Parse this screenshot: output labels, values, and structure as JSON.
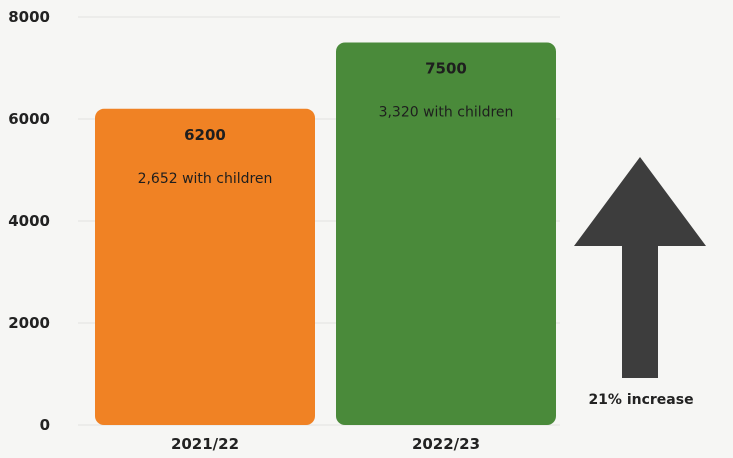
{
  "chart_data": {
    "type": "bar",
    "categories": [
      "2021/22",
      "2022/23"
    ],
    "values": [
      6200,
      7500
    ],
    "sublabels": [
      "2,652 with children",
      "3,320 with children"
    ],
    "bar_colors": [
      "#f08224",
      "#4a8a3a"
    ],
    "ylim": [
      0,
      8000
    ],
    "yticks": [
      0,
      2000,
      4000,
      6000,
      8000
    ],
    "grid": true,
    "annotation": {
      "text": "21% increase",
      "icon": "up-arrow-icon",
      "color": "#3d3d3d"
    }
  }
}
